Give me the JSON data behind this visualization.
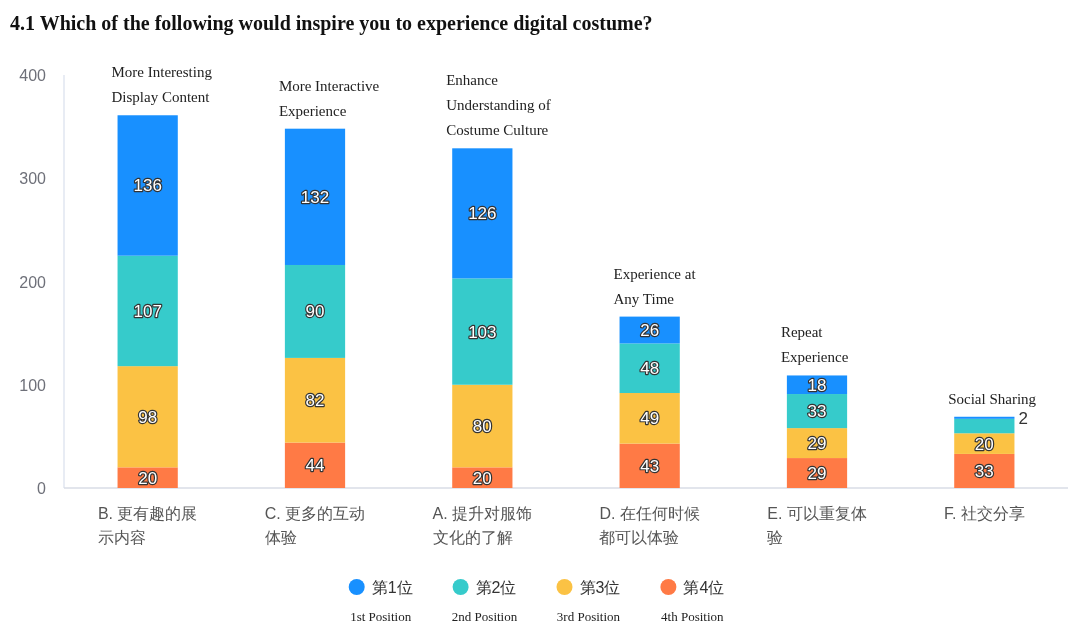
{
  "chart_data": {
    "type": "bar",
    "stacked": true,
    "title": "4.1 Which of the following would inspire you to experience digital costume?",
    "categories": [
      "B. 更有趣的展示内容",
      "C. 更多的互动体验",
      "A. 提升对服饰文化的了解",
      "D. 在任何时候都可以体验",
      "E. 可以重复体验",
      "F. 社交分享"
    ],
    "series": [
      {
        "name": "第4位\n4th Position",
        "color": "#ff7a45",
        "values": [
          20,
          44,
          20,
          43,
          29,
          33
        ],
        "value_labels": [
          "20",
          "44",
          "20",
          "43",
          "29",
          "33"
        ]
      },
      {
        "name": "第3位\n3rd Position",
        "color": "#fbc244",
        "values": [
          98,
          82,
          80,
          49,
          29,
          20
        ],
        "value_labels": [
          "98",
          "82",
          "80",
          "49",
          "29",
          "20"
        ]
      },
      {
        "name": "第2位\n2nd Position",
        "color": "#36cbcb",
        "values": [
          107,
          90,
          103,
          48,
          33,
          14
        ],
        "value_labels": [
          "107",
          "90",
          "103",
          "48",
          "33",
          null
        ]
      },
      {
        "name": "第1位\n1st Position",
        "color": "#1890ff",
        "values": [
          136,
          132,
          126,
          26,
          18,
          2
        ],
        "value_labels": [
          "136",
          "132",
          "126",
          "26",
          "18",
          "2"
        ]
      }
    ],
    "ylim": [
      0,
      400
    ],
    "yticks": [
      0,
      100,
      200,
      300,
      400
    ],
    "legend": "bottom",
    "annotations": [
      {
        "text": "More Interesting Display Content",
        "x": "B. 更有趣的展示内容",
        "y": 361
      },
      {
        "text": "More Interactive Experience",
        "x": "C. 更多的互动体验",
        "y": 348
      },
      {
        "text": "Enhance Understanding of Costume Culture",
        "x": "A. 提升对服饰文化的了解",
        "y": 329
      },
      {
        "text": "Experience at Any Time",
        "x": "D. 在任何时候都可以体验",
        "y": 166
      },
      {
        "text": "Repeat Experience",
        "x": "E. 可以重复体验",
        "y": 109
      },
      {
        "text": "Social Sharing",
        "x": "F. 社交分享",
        "y": 69
      }
    ]
  }
}
